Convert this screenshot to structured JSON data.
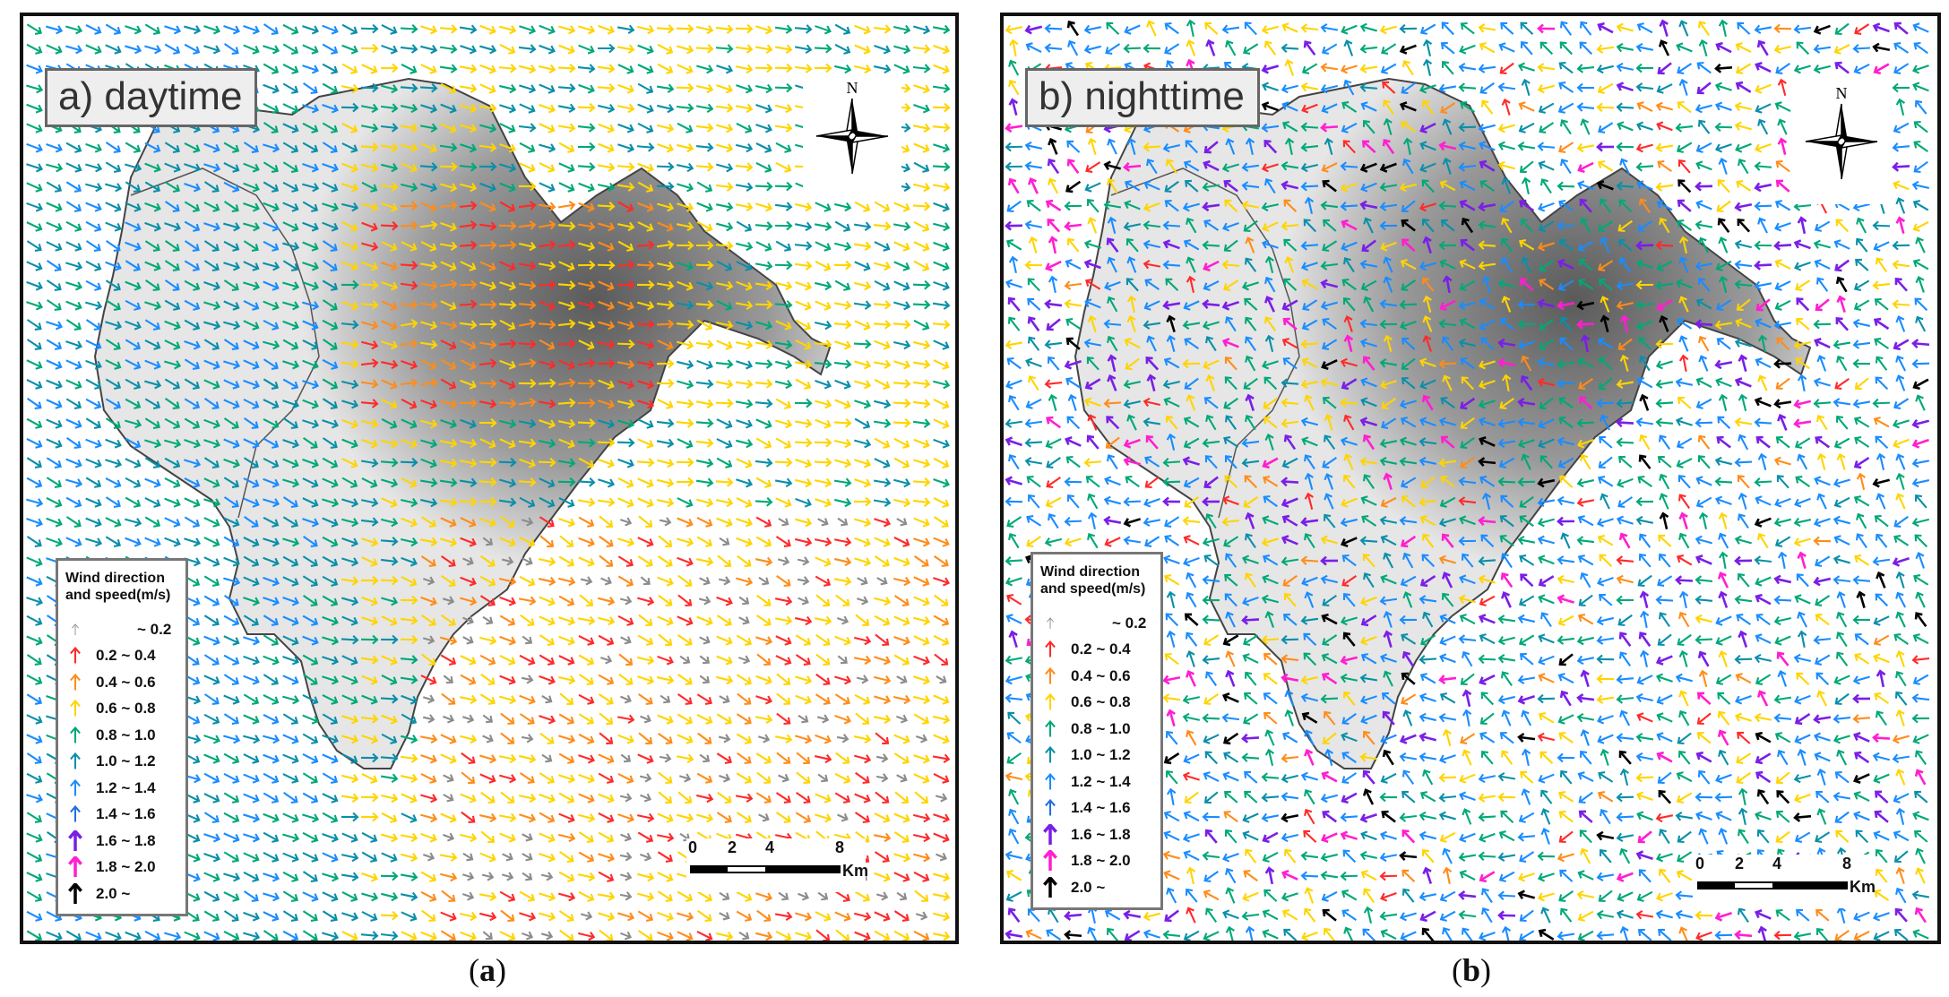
{
  "panels": [
    {
      "id": "a",
      "title": "a) daytime",
      "caption_letter": "a",
      "mode": "day",
      "scalebar": {
        "labels": [
          "0",
          "2",
          "4",
          "8"
        ],
        "unit": "Km"
      },
      "compass_label": "N"
    },
    {
      "id": "b",
      "title": "b) nighttime",
      "caption_letter": "b",
      "mode": "night",
      "scalebar": {
        "labels": [
          "0",
          "2",
          "4",
          "8"
        ],
        "unit": "Km"
      },
      "compass_label": "N"
    }
  ],
  "legend": {
    "title_line1": "Wind direction",
    "title_line2": "and speed(m/s)",
    "classes": [
      {
        "label": "~ 0.2",
        "color": "#8c8c8c"
      },
      {
        "label": "0.2 ~ 0.4",
        "color": "#ff2a2a"
      },
      {
        "label": "0.4 ~ 0.6",
        "color": "#ff8c1a"
      },
      {
        "label": "0.6 ~ 0.8",
        "color": "#ffd400"
      },
      {
        "label": "0.8 ~ 1.0",
        "color": "#00a878"
      },
      {
        "label": "1.0 ~ 1.2",
        "color": "#0a8fa8"
      },
      {
        "label": "1.2 ~ 1.4",
        "color": "#1a8cff"
      },
      {
        "label": "1.4 ~ 1.6",
        "color": "#1f6fe0"
      },
      {
        "label": "1.6 ~ 1.8",
        "color": "#7a1fe6"
      },
      {
        "label": "1.8 ~ 2.0",
        "color": "#ff1fd0"
      },
      {
        "label": "2.0 ~",
        "color": "#000000"
      }
    ]
  }
}
